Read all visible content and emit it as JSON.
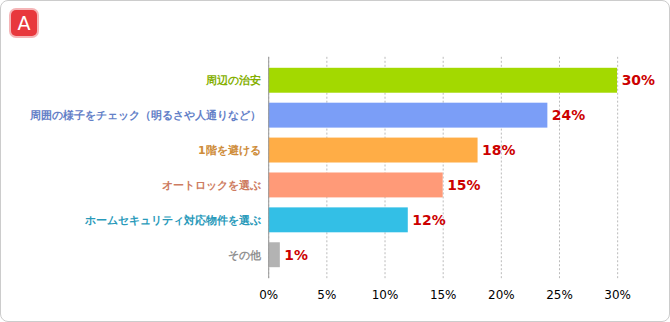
{
  "chart_data": {
    "type": "bar",
    "title": "A",
    "orientation": "horizontal",
    "categories": [
      "周辺の治安",
      "周囲の様子をチェック（明るさや人通りなど）",
      "1階を避ける",
      "オートロックを選ぶ",
      "ホームセキュリティ対応物件を選ぶ",
      "その他"
    ],
    "values": [
      30,
      24,
      18,
      15,
      12,
      1
    ],
    "value_labels": [
      "30%",
      "24%",
      "18%",
      "15%",
      "12%",
      "1%"
    ],
    "colors": [
      "#a3d900",
      "#7b9ef7",
      "#ffad46",
      "#ff9a78",
      "#33bfe6",
      "#b3b3b3"
    ],
    "xlim": [
      0,
      30
    ],
    "xticks": [
      {
        "value": 0,
        "label": "0%"
      },
      {
        "value": 5,
        "label": "5%"
      },
      {
        "value": 10,
        "label": "10%"
      },
      {
        "value": 15,
        "label": "15%"
      },
      {
        "value": 20,
        "label": "20%"
      },
      {
        "value": 25,
        "label": "25%"
      },
      {
        "value": 30,
        "label": "30%"
      }
    ],
    "grid": true,
    "data_labels": true
  }
}
